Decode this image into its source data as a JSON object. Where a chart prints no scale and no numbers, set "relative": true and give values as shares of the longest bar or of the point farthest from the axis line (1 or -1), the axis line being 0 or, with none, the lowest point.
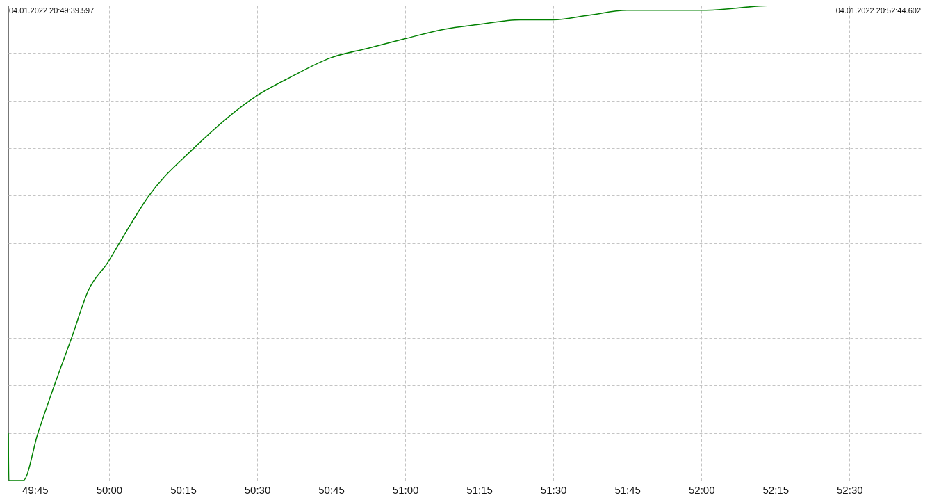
{
  "chart_data": {
    "type": "line",
    "relative": true,
    "annotations": [
      "04.01.2022 20:49:39.597",
      "04.01.2022 20:52:44.602"
    ],
    "x": [
      "2022-01-04T20:49:39.6",
      "2022-01-04T20:49:39.7",
      "2022-01-04T20:49:42.6",
      "2022-01-04T20:49:45.6",
      "2022-01-04T20:49:48.9",
      "2022-01-04T20:49:52.4",
      "2022-01-04T20:49:55.8",
      "2022-01-04T20:49:59.8",
      "2022-01-04T20:50:02.1",
      "2022-01-04T20:50:08.1",
      "2022-01-04T20:50:17.2",
      "2022-01-04T20:50:29.9",
      "2022-01-04T20:50:36.9",
      "2022-01-04T20:50:44.9",
      "2022-01-04T20:50:52.4",
      "2022-01-04T20:50:59.9",
      "2022-01-04T20:51:07.8",
      "2022-01-04T20:51:14.8",
      "2022-01-04T20:51:23.3",
      "2022-01-04T20:51:29.9",
      "2022-01-04T20:51:37.3",
      "2022-01-04T20:51:44.9",
      "2022-01-04T20:51:59.9",
      "2022-01-04T20:52:14.8",
      "2022-01-04T20:52:29.8",
      "2022-01-04T20:52:44.6"
    ],
    "series": [
      {
        "color": "#008000",
        "values": [
          0.1,
          0,
          0,
          0.1,
          0.2,
          0.3,
          0.4,
          0.46,
          0.5,
          0.6,
          0.7,
          0.81,
          0.85,
          0.89,
          0.91,
          0.93,
          0.95,
          0.96,
          0.97,
          0.97,
          0.98,
          0.99,
          0.99,
          1,
          1,
          1
        ]
      }
    ],
    "xlim": [
      "2022-01-04T20:49:39.597",
      "2022-01-04T20:52:44.602"
    ],
    "xticks": [
      {
        "value": "2022-01-04T20:49:45",
        "label": "49:45"
      },
      {
        "value": "2022-01-04T20:50:00",
        "label": "50:00"
      },
      {
        "value": "2022-01-04T20:50:15",
        "label": "50:15"
      },
      {
        "value": "2022-01-04T20:50:30",
        "label": "50:30"
      },
      {
        "value": "2022-01-04T20:50:45",
        "label": "50:45"
      },
      {
        "value": "2022-01-04T20:51:00",
        "label": "51:00"
      },
      {
        "value": "2022-01-04T20:51:15",
        "label": "51:15"
      },
      {
        "value": "2022-01-04T20:51:30",
        "label": "51:30"
      },
      {
        "value": "2022-01-04T20:51:45",
        "label": "51:45"
      },
      {
        "value": "2022-01-04T20:52:00",
        "label": "52:00"
      },
      {
        "value": "2022-01-04T20:52:15",
        "label": "52:15"
      },
      {
        "value": "2022-01-04T20:52:30",
        "label": "52:30"
      }
    ],
    "grid": true,
    "marker": "none",
    "line_style": "solid"
  }
}
